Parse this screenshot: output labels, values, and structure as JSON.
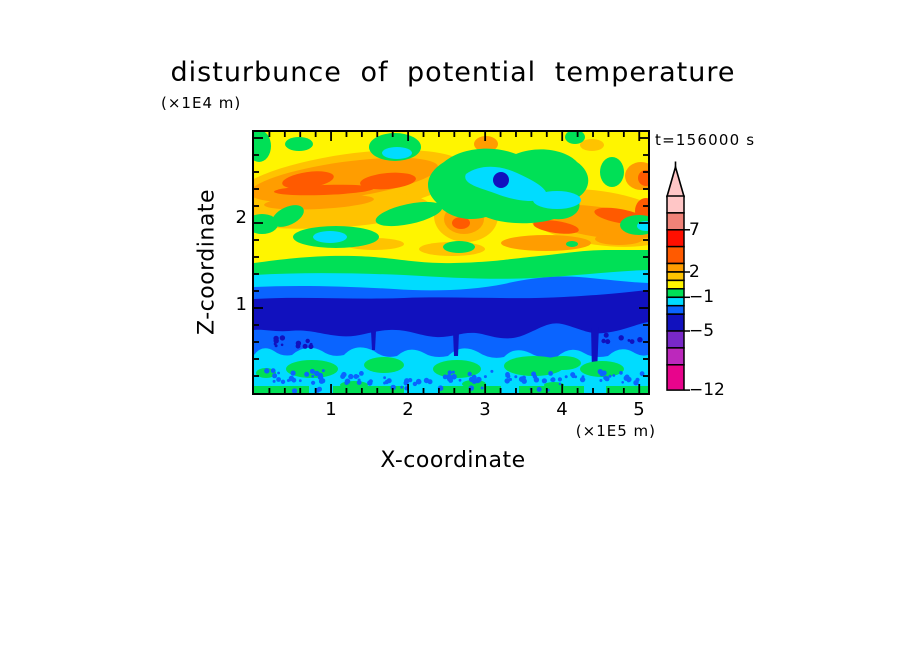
{
  "figure": {
    "title": "disturbunce of potential temperature",
    "top_left_unit": "(×1E4 m)",
    "time_label": "t=156000 s",
    "y_axis": {
      "label": "Z-coordinate",
      "ticks": [
        "1",
        "2"
      ]
    },
    "x_axis": {
      "label": "X-coordinate",
      "unit": "(×1E5 m)",
      "ticks": [
        "1",
        "2",
        "3",
        "4",
        "5"
      ]
    }
  },
  "chart_data": {
    "type": "filled_contour",
    "title": "disturbunce of potential temperature",
    "xlabel": "X-coordinate",
    "x_unit": "×1E5 m",
    "ylabel": "Z-coordinate",
    "y_unit": "×1E4 m",
    "time_annotation": "t=156000 s",
    "xlim": [
      0,
      5.12
    ],
    "ylim": [
      0,
      3.07
    ],
    "x_major_ticks": [
      1,
      2,
      3,
      4,
      5
    ],
    "y_major_ticks": [
      1,
      2
    ],
    "minor_tick_step": 0.2,
    "grid": false,
    "legend_position": "right-colorbar",
    "contour_levels": [
      -12,
      -9,
      -7,
      -5,
      -3,
      -2,
      -1,
      0,
      1,
      2,
      3,
      5,
      7,
      9,
      11
    ],
    "palette": [
      "#E8048C",
      "#BC28BC",
      "#7828C8",
      "#1111BE",
      "#0A64FF",
      "#00DCFF",
      "#00E056",
      "#FFF500",
      "#FFC300",
      "#FF9D00",
      "#FF5A00",
      "#FF0F00",
      "#F08278",
      "#FFC6C6"
    ],
    "over_range_arrow_color": "#FFC6C6",
    "colorbar_labels": [
      {
        "text": "7",
        "value": 7
      },
      {
        "text": "2",
        "value": 2
      },
      {
        "text": "−1",
        "value": -1
      },
      {
        "text": "−5",
        "value": -5
      },
      {
        "text": "−12",
        "value": -12
      }
    ],
    "field_structure": {
      "upper_region_z_1.6_to_3.1": "turbulent yellow (0..1) background with gold/amber/orange streaks (values 1..5) slanting across; green and cyan pockets (−2..0) and one small dark-blue spot (−5..−3) near x=3.3, z=2.5",
      "band_z_1.3_to_1.6": "horizontal green then cyan transition band (−2..0)",
      "band_z_0.8_to_1.3": "dark navy band (−5..−3) bounded by medium blue (−3..−2), wavy lower edge",
      "lower_region_z_0_to_0.8": "cyan layer (−2..−1) with scalloped top, green blobs (−1..0), small royal-blue speckles, thin broken green strip along the ground"
    }
  }
}
